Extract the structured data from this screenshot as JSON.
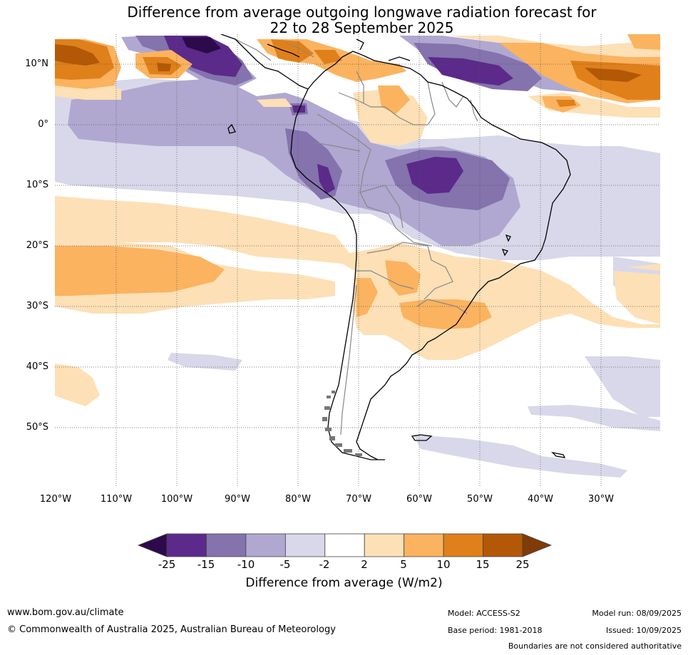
{
  "title": {
    "line1": "Difference from average outgoing longwave radiation forecast for",
    "line2": "22 to 28 September 2025"
  },
  "map": {
    "region": "South America",
    "lat_ticks": [
      "10°N",
      "0°",
      "10°S",
      "20°S",
      "30°S",
      "40°S",
      "50°S"
    ],
    "lon_ticks": [
      "120°W",
      "110°W",
      "100°W",
      "90°W",
      "80°W",
      "70°W",
      "60°W",
      "50°W",
      "40°W",
      "30°W"
    ]
  },
  "colorbar": {
    "labels": [
      "-25",
      "-15",
      "-10",
      "-5",
      "-2",
      "2",
      "5",
      "10",
      "15",
      "25"
    ],
    "colors": [
      "#2d0a4b",
      "#5b2a8a",
      "#8473ad",
      "#b0a8d0",
      "#d8d8ea",
      "#ffffff",
      "#fde0b6",
      "#fbb35f",
      "#e0801a",
      "#b35806",
      "#7f3b08"
    ],
    "title": "Difference from average (W/m2)"
  },
  "footer": {
    "website": "www.bom.gov.au/climate",
    "copyright": "© Commonwealth of Australia 2025, Australian Bureau of Meteorology",
    "model": "Model: ACCESS-S2",
    "base_period": "Base period: 1981-2018",
    "model_run": "Model run: 08/09/2025",
    "issued": "Issued: 10/09/2025",
    "disclaimer": "Boundaries are not considered authoritative"
  }
}
